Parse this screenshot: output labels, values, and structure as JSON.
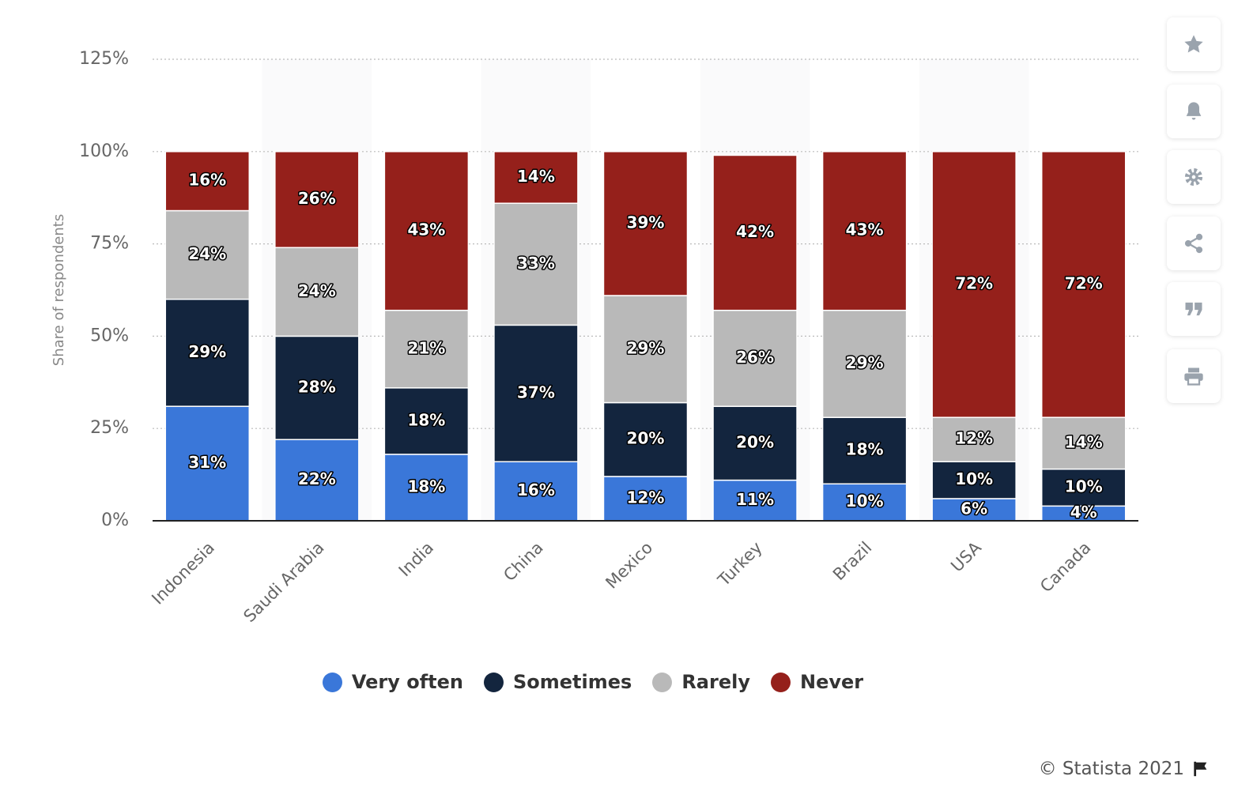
{
  "chart_data": {
    "type": "bar",
    "stacked": true,
    "y_label": "Share of respondents",
    "categories": [
      "Indonesia",
      "Saudi Arabia",
      "India",
      "China",
      "Mexico",
      "Turkey",
      "Brazil",
      "USA",
      "Canada"
    ],
    "series": [
      {
        "name": "Very often",
        "color": "#3a77d9",
        "values": [
          31,
          22,
          18,
          16,
          12,
          11,
          10,
          6,
          4
        ],
        "value_labels": [
          "31%",
          "22%",
          "18%",
          "16%",
          "12%",
          "11%",
          "10%",
          "6%",
          "4%"
        ]
      },
      {
        "name": "Sometimes",
        "color": "#13253e",
        "values": [
          29,
          28,
          18,
          37,
          20,
          20,
          18,
          10,
          10
        ],
        "value_labels": [
          "29%",
          "28%",
          "18%",
          "37%",
          "20%",
          "20%",
          "18%",
          "10%",
          "10%"
        ]
      },
      {
        "name": "Rarely",
        "color": "#b9b9b9",
        "values": [
          24,
          24,
          21,
          33,
          29,
          26,
          29,
          12,
          14
        ],
        "value_labels": [
          "24%",
          "24%",
          "21%",
          "33%",
          "29%",
          "26%",
          "29%",
          "12%",
          "14%"
        ]
      },
      {
        "name": "Never",
        "color": "#95201b",
        "values": [
          16,
          26,
          43,
          14,
          39,
          42,
          43,
          72,
          72
        ],
        "value_labels": [
          "16%",
          "26%",
          "43%",
          "14%",
          "39%",
          "42%",
          "43%",
          "72%",
          "72%"
        ]
      }
    ],
    "ylim": [
      0,
      125
    ],
    "yticks": [
      {
        "value": 0,
        "label": "0%"
      },
      {
        "value": 25,
        "label": "25%"
      },
      {
        "value": 50,
        "label": "50%"
      },
      {
        "value": 75,
        "label": "75%"
      },
      {
        "value": 100,
        "label": "100%"
      },
      {
        "value": 125,
        "label": "125%"
      }
    ],
    "grid": true,
    "legend": "bottom"
  },
  "footer": {
    "text": "© Statista 2021"
  }
}
